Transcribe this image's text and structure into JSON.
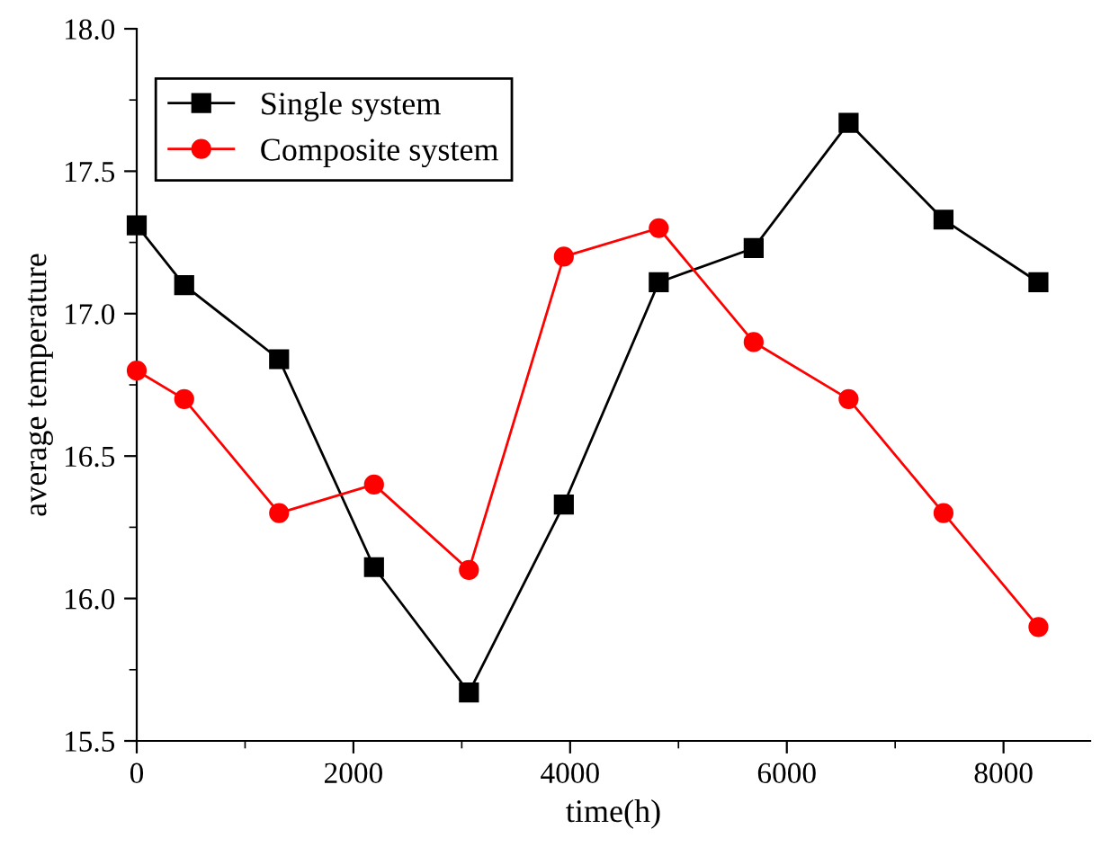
{
  "chart_data": {
    "type": "line",
    "xlabel": "time(h)",
    "ylabel": "average temperature",
    "x": [
      0,
      438,
      1314,
      2190,
      3066,
      3942,
      4818,
      5694,
      6570,
      7446,
      8322
    ],
    "series": [
      {
        "name": "Single system",
        "color": "#000000",
        "marker": "square",
        "values": [
          17.31,
          17.1,
          16.84,
          16.11,
          15.67,
          16.33,
          17.11,
          17.23,
          17.67,
          17.33,
          17.11
        ]
      },
      {
        "name": "Composite system",
        "color": "#ff0000",
        "marker": "circle",
        "values": [
          16.8,
          16.7,
          16.3,
          16.4,
          16.1,
          17.2,
          17.3,
          16.9,
          16.7,
          16.3,
          15.9
        ]
      }
    ],
    "xlim": [
      0,
      8800
    ],
    "xticks": [
      0,
      2000,
      4000,
      6000,
      8000
    ],
    "ylim": [
      15.5,
      18.0
    ],
    "yticks": [
      15.5,
      {
        "value": 16,
        "label": "16.0"
      },
      16.5,
      {
        "value": 17,
        "label": "17.0"
      },
      17.5,
      {
        "value": 18,
        "label": "18.0"
      }
    ],
    "grid": false,
    "legend": "top left",
    "line_style": "solid"
  }
}
